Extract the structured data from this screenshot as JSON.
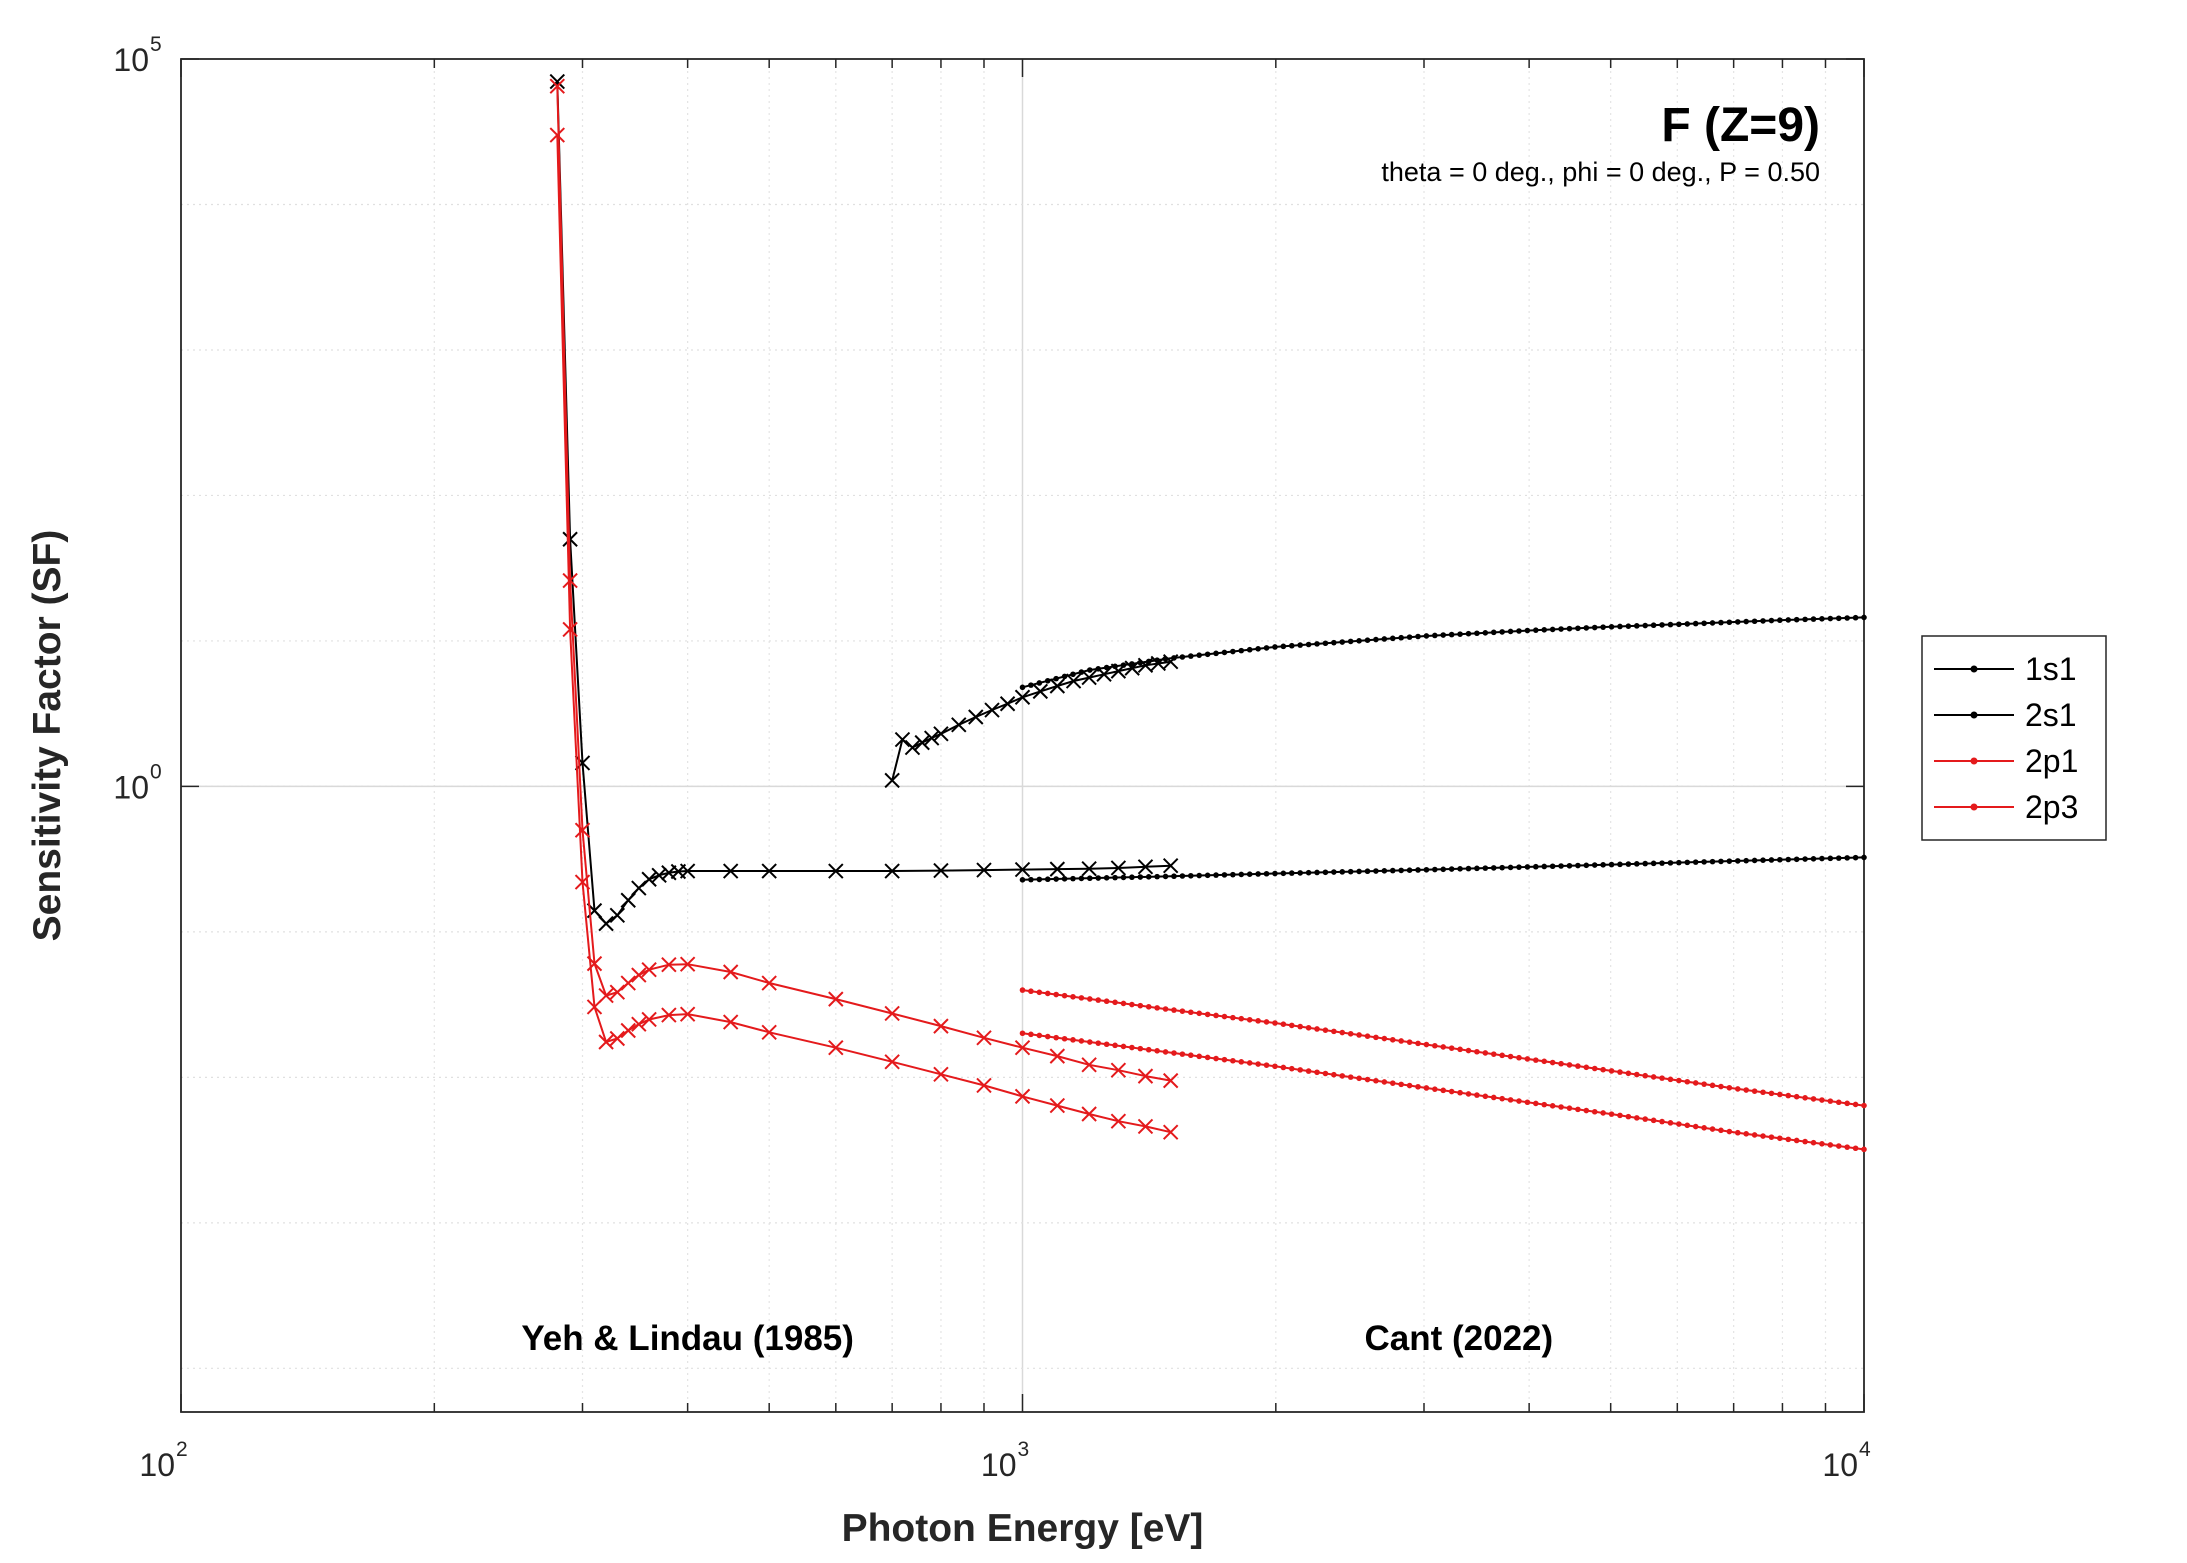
{
  "chart_data": {
    "type": "line",
    "title": "F (Z=9)",
    "subtitle": "theta = 0 deg., phi = 0 deg., P = 0.50",
    "xlabel": "Photon Energy [eV]",
    "ylabel": "Sensitivity Factor (SF)",
    "xscale": "log",
    "yscale": "log",
    "xlim": [
      100,
      10000
    ],
    "ylim": [
      5.01e-05,
      100000
    ],
    "x_ticks": [
      {
        "base": "10",
        "exp": "2",
        "value": 100
      },
      {
        "base": "10",
        "exp": "3",
        "value": 1000
      },
      {
        "base": "10",
        "exp": "4",
        "value": 10000
      }
    ],
    "y_ticks": [
      {
        "base": "10",
        "exp": "0",
        "value": 1
      },
      {
        "base": "10",
        "exp": "5",
        "value": 100000
      }
    ],
    "grid": true,
    "legend_position": "outside-right",
    "annotations": [
      {
        "text": "Yeh & Lindau (1985)",
        "x": 400
      },
      {
        "text": "Cant (2022)",
        "x": 3300
      }
    ],
    "series": [
      {
        "name": "1s1",
        "color": "#000000",
        "marker": "dot",
        "x": [
          1000,
          1200,
          1500,
          2000,
          3000,
          4000,
          5000,
          6000,
          8000,
          10000
        ],
        "y": [
          4.8,
          6.3,
          7.6,
          9.1,
          10.8,
          11.8,
          12.5,
          13.0,
          13.9,
          14.5
        ]
      },
      {
        "name": "2s1",
        "color": "#000000",
        "marker": "dot",
        "x": [
          1000,
          1500,
          2000,
          3000,
          5000,
          7000,
          10000
        ],
        "y": [
          0.228,
          0.241,
          0.252,
          0.267,
          0.29,
          0.307,
          0.325
        ]
      },
      {
        "name": "2p1",
        "color": "#e41a1c",
        "marker": "dot",
        "x": [
          1000,
          1500,
          2000,
          3000,
          5000,
          7000,
          10000
        ],
        "y": [
          0.0201,
          0.0148,
          0.0119,
          0.0085,
          0.0056,
          0.0042,
          0.0032
        ]
      },
      {
        "name": "2p3",
        "color": "#e41a1c",
        "marker": "dot",
        "x": [
          1000,
          1500,
          2000,
          3000,
          5000,
          7000,
          10000
        ],
        "y": [
          0.0398,
          0.0292,
          0.0236,
          0.0169,
          0.0111,
          0.0084,
          0.0064
        ]
      },
      {
        "name": "",
        "color": "#000000",
        "marker": "x",
        "legend": false,
        "x": [
          700,
          720,
          740,
          760,
          780,
          800,
          840,
          880,
          920,
          960,
          1000,
          1050,
          1100,
          1150,
          1200,
          1250,
          1300,
          1350,
          1400,
          1450,
          1500
        ],
        "y": [
          1.1,
          2.1,
          1.85,
          2.0,
          2.15,
          2.3,
          2.65,
          3.0,
          3.35,
          3.7,
          4.1,
          4.5,
          4.9,
          5.3,
          5.6,
          5.9,
          6.2,
          6.5,
          6.8,
          7.0,
          7.2
        ]
      },
      {
        "name": "",
        "color": "#000000",
        "marker": "x",
        "legend": false,
        "x": [
          280,
          290,
          300,
          310,
          320,
          330,
          340,
          350,
          360,
          370,
          380,
          390,
          400,
          450,
          500,
          600,
          700,
          800,
          900,
          1000,
          1100,
          1200,
          1300,
          1400,
          1500
        ],
        "y": [
          70000,
          50,
          1.45,
          0.14,
          0.114,
          0.13,
          0.165,
          0.2,
          0.23,
          0.245,
          0.255,
          0.26,
          0.262,
          0.262,
          0.262,
          0.262,
          0.262,
          0.264,
          0.266,
          0.268,
          0.27,
          0.272,
          0.275,
          0.28,
          0.285
        ]
      },
      {
        "name": "",
        "color": "#e41a1c",
        "marker": "x",
        "legend": false,
        "x": [
          280,
          290,
          300,
          310,
          320,
          330,
          340,
          350,
          360,
          380,
          400,
          450,
          500,
          600,
          700,
          800,
          900,
          1000,
          1100,
          1200,
          1300,
          1400,
          1500
        ],
        "y": [
          65000,
          26,
          0.5,
          0.0605,
          0.0365,
          0.0385,
          0.0445,
          0.0505,
          0.055,
          0.0595,
          0.06,
          0.053,
          0.0445,
          0.0345,
          0.0275,
          0.0225,
          0.0187,
          0.016,
          0.014,
          0.0122,
          0.0112,
          0.0102,
          0.0095
        ]
      },
      {
        "name": "",
        "color": "#e41a1c",
        "marker": "x",
        "legend": false,
        "x": [
          280,
          290,
          300,
          310,
          320,
          330,
          340,
          350,
          360,
          380,
          400,
          450,
          500,
          600,
          700,
          800,
          900,
          1000,
          1100,
          1200,
          1300,
          1400,
          1500
        ],
        "y": [
          30000,
          12,
          0.22,
          0.0305,
          0.0175,
          0.0185,
          0.021,
          0.0232,
          0.025,
          0.0268,
          0.0272,
          0.024,
          0.0204,
          0.016,
          0.0128,
          0.0105,
          0.0088,
          0.0074,
          0.0064,
          0.0056,
          0.005,
          0.0046,
          0.0042
        ]
      }
    ]
  }
}
